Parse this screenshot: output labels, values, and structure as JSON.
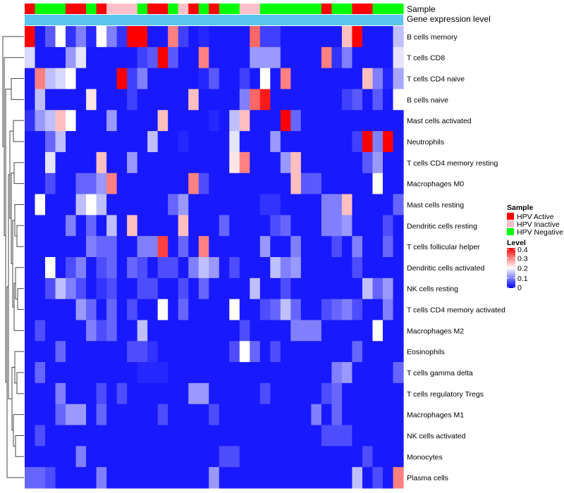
{
  "chart_data": {
    "type": "heatmap",
    "annotations": {
      "sample_label": "Sample",
      "expression_label": "Gene expression level"
    },
    "column_groups": [
      "HPV Active",
      "HPV Negative",
      "HPV Negative",
      "HPV Negative",
      "HPV Active",
      "HPV Active",
      "HPV Negative",
      "HPV Active",
      "HPV Inactive",
      "HPV Inactive",
      "HPV Inactive",
      "HPV Negative",
      "HPV Active",
      "HPV Active",
      "HPV Negative",
      "HPV Inactive",
      "HPV Active",
      "HPV Negative",
      "HPV Active",
      "HPV Negative",
      "HPV Negative",
      "HPV Inactive",
      "HPV Inactive",
      "HPV Negative",
      "HPV Negative",
      "HPV Negative",
      "HPV Negative",
      "HPV Negative",
      "HPV Negative",
      "HPV Active",
      "HPV Negative",
      "HPV Negative",
      "HPV Active",
      "HPV Active",
      "HPV Negative",
      "HPV Negative",
      "HPV Negative"
    ],
    "rows": [
      {
        "name": "B cells memory",
        "values": [
          0.4,
          0.02,
          0.07,
          0.2,
          0.04,
          0.1,
          0.03,
          0.2,
          0.1,
          0.04,
          0.4,
          0.4,
          0.02,
          0.02,
          0.3,
          0.05,
          0.02,
          0.03,
          0.02,
          0.02,
          0.02,
          0.02,
          0.32,
          0.05,
          0.05,
          0.02,
          0.02,
          0.02,
          0.02,
          0.02,
          0.02,
          0.25,
          0.4,
          0.02,
          0.02,
          0.02,
          0.15
        ]
      },
      {
        "name": "T cells CD8",
        "values": [
          0.17,
          0.02,
          0.02,
          0.02,
          0.12,
          0.18,
          0.02,
          0.02,
          0.02,
          0.02,
          0.02,
          0.05,
          0.07,
          0.4,
          0.07,
          0.02,
          0.02,
          0.3,
          0.02,
          0.02,
          0.02,
          0.02,
          0.12,
          0.12,
          0.12,
          0.02,
          0.02,
          0.02,
          0.02,
          0.3,
          0.04,
          0.1,
          0.02,
          0.02,
          0.02,
          0.02,
          0.18
        ]
      },
      {
        "name": "T cells CD4 naive",
        "values": [
          0.02,
          0.3,
          0.15,
          0.17,
          0.2,
          0.02,
          0.02,
          0.02,
          0.02,
          0.4,
          0.05,
          0.1,
          0.02,
          0.02,
          0.02,
          0.02,
          0.02,
          0.03,
          0.07,
          0.02,
          0.02,
          0.05,
          0.02,
          0.2,
          0.02,
          0.3,
          0.02,
          0.02,
          0.02,
          0.02,
          0.02,
          0.02,
          0.02,
          0.25,
          0.1,
          0.03,
          0.13
        ]
      },
      {
        "name": "B cells naive",
        "values": [
          0.02,
          0.15,
          0.02,
          0.02,
          0.02,
          0.02,
          0.22,
          0.02,
          0.02,
          0.02,
          0.05,
          0.02,
          0.02,
          0.02,
          0.02,
          0.02,
          0.25,
          0.02,
          0.02,
          0.02,
          0.02,
          0.1,
          0.32,
          0.38,
          0.02,
          0.02,
          0.02,
          0.02,
          0.02,
          0.02,
          0.02,
          0.05,
          0.07,
          0.02,
          0.07,
          0.02,
          0.2
        ]
      },
      {
        "name": "Mast cells activated",
        "values": [
          0.04,
          0.12,
          0.15,
          0.25,
          0.2,
          0.02,
          0.02,
          0.02,
          0.12,
          0.02,
          0.02,
          0.02,
          0.02,
          0.25,
          0.02,
          0.02,
          0.02,
          0.02,
          0.03,
          0.02,
          0.15,
          0.25,
          0.02,
          0.02,
          0.02,
          0.4,
          0.08,
          0.02,
          0.02,
          0.02,
          0.02,
          0.02,
          0.02,
          0.02,
          0.02,
          0.02,
          0.02
        ]
      },
      {
        "name": "Neutrophils",
        "values": [
          0.02,
          0.02,
          0.08,
          0.15,
          0.02,
          0.02,
          0.02,
          0.02,
          0.02,
          0.02,
          0.02,
          0.02,
          0.15,
          0.02,
          0.02,
          0.03,
          0.02,
          0.02,
          0.02,
          0.02,
          0.18,
          0.02,
          0.02,
          0.02,
          0.12,
          0.02,
          0.02,
          0.02,
          0.02,
          0.02,
          0.02,
          0.02,
          0.05,
          0.4,
          0.1,
          0.4,
          0.02
        ]
      },
      {
        "name": "T cells CD4 memory resting",
        "values": [
          0.02,
          0.02,
          0.18,
          0.02,
          0.02,
          0.02,
          0.02,
          0.25,
          0.02,
          0.02,
          0.12,
          0.02,
          0.02,
          0.02,
          0.02,
          0.02,
          0.02,
          0.02,
          0.02,
          0.02,
          0.22,
          0.3,
          0.02,
          0.02,
          0.02,
          0.12,
          0.25,
          0.02,
          0.02,
          0.02,
          0.02,
          0.02,
          0.02,
          0.07,
          0.12,
          0.02,
          0.02
        ]
      },
      {
        "name": "Macrophages M0",
        "values": [
          0.02,
          0.02,
          0.06,
          0.02,
          0.02,
          0.08,
          0.08,
          0.12,
          0.3,
          0.02,
          0.02,
          0.02,
          0.02,
          0.02,
          0.02,
          0.02,
          0.3,
          0.06,
          0.02,
          0.02,
          0.02,
          0.02,
          0.02,
          0.02,
          0.02,
          0.02,
          0.25,
          0.07,
          0.07,
          0.02,
          0.02,
          0.02,
          0.02,
          0.02,
          0.2,
          0.02,
          0.02
        ]
      },
      {
        "name": "Mast cells resting",
        "values": [
          0.02,
          0.2,
          0.02,
          0.02,
          0.02,
          0.15,
          0.2,
          0.15,
          0.02,
          0.02,
          0.02,
          0.02,
          0.02,
          0.02,
          0.08,
          0.12,
          0.02,
          0.02,
          0.02,
          0.02,
          0.02,
          0.02,
          0.02,
          0.04,
          0.04,
          0.02,
          0.02,
          0.02,
          0.02,
          0.1,
          0.1,
          0.25,
          0.02,
          0.02,
          0.02,
          0.02,
          0.08
        ]
      },
      {
        "name": "Dendritic cells resting",
        "values": [
          0.02,
          0.02,
          0.02,
          0.02,
          0.1,
          0.02,
          0.08,
          0.02,
          0.15,
          0.02,
          0.25,
          0.02,
          0.02,
          0.02,
          0.02,
          0.25,
          0.02,
          0.02,
          0.02,
          0.08,
          0.02,
          0.02,
          0.02,
          0.02,
          0.06,
          0.08,
          0.02,
          0.02,
          0.02,
          0.1,
          0.1,
          0.12,
          0.02,
          0.02,
          0.02,
          0.06,
          0.02
        ]
      },
      {
        "name": "T cells follicular helper",
        "values": [
          0.02,
          0.02,
          0.02,
          0.02,
          0.02,
          0.02,
          0.1,
          0.08,
          0.08,
          0.02,
          0.02,
          0.1,
          0.1,
          0.35,
          0.02,
          0.08,
          0.02,
          0.3,
          0.02,
          0.02,
          0.02,
          0.02,
          0.02,
          0.12,
          0.02,
          0.02,
          0.1,
          0.02,
          0.02,
          0.02,
          0.06,
          0.02,
          0.1,
          0.02,
          0.02,
          0.08,
          0.02
        ]
      },
      {
        "name": "Dendritic cells activated",
        "values": [
          0.02,
          0.02,
          0.2,
          0.02,
          0.06,
          0.1,
          0.02,
          0.06,
          0.08,
          0.02,
          0.08,
          0.06,
          0.02,
          0.06,
          0.06,
          0.02,
          0.1,
          0.15,
          0.12,
          0.02,
          0.06,
          0.02,
          0.02,
          0.02,
          0.15,
          0.1,
          0.12,
          0.02,
          0.02,
          0.02,
          0.02,
          0.02,
          0.06,
          0.02,
          0.02,
          0.02,
          0.02
        ]
      },
      {
        "name": "NK cells resting",
        "values": [
          0.02,
          0.02,
          0.06,
          0.15,
          0.1,
          0.06,
          0.02,
          0.04,
          0.06,
          0.02,
          0.02,
          0.06,
          0.06,
          0.02,
          0.02,
          0.06,
          0.02,
          0.08,
          0.02,
          0.02,
          0.02,
          0.02,
          0.15,
          0.02,
          0.02,
          0.06,
          0.02,
          0.02,
          0.02,
          0.02,
          0.02,
          0.02,
          0.02,
          0.15,
          0.08,
          0.12,
          0.02
        ]
      },
      {
        "name": "T cells CD4 memory activated",
        "values": [
          0.02,
          0.02,
          0.02,
          0.02,
          0.02,
          0.12,
          0.08,
          0.02,
          0.08,
          0.02,
          0.06,
          0.02,
          0.02,
          0.2,
          0.02,
          0.08,
          0.02,
          0.02,
          0.02,
          0.02,
          0.2,
          0.02,
          0.02,
          0.06,
          0.08,
          0.15,
          0.08,
          0.02,
          0.02,
          0.06,
          0.08,
          0.1,
          0.06,
          0.02,
          0.02,
          0.1,
          0.02
        ]
      },
      {
        "name": "Macrophages M2",
        "values": [
          0.02,
          0.06,
          0.02,
          0.02,
          0.02,
          0.02,
          0.1,
          0.06,
          0.08,
          0.02,
          0.02,
          0.15,
          0.02,
          0.02,
          0.02,
          0.02,
          0.02,
          0.02,
          0.02,
          0.02,
          0.02,
          0.06,
          0.02,
          0.02,
          0.02,
          0.02,
          0.1,
          0.1,
          0.1,
          0.02,
          0.02,
          0.02,
          0.02,
          0.02,
          0.2,
          0.02,
          0.02
        ]
      },
      {
        "name": "Eosinophils",
        "values": [
          0.02,
          0.02,
          0.02,
          0.08,
          0.02,
          0.02,
          0.02,
          0.02,
          0.02,
          0.02,
          0.06,
          0.06,
          0.04,
          0.02,
          0.02,
          0.02,
          0.02,
          0.02,
          0.02,
          0.02,
          0.06,
          0.2,
          0.08,
          0.02,
          0.06,
          0.02,
          0.02,
          0.02,
          0.02,
          0.02,
          0.02,
          0.02,
          0.08,
          0.02,
          0.02,
          0.02,
          0.02
        ]
      },
      {
        "name": "T cells gamma delta",
        "values": [
          0.02,
          0.08,
          0.02,
          0.02,
          0.02,
          0.02,
          0.02,
          0.02,
          0.02,
          0.02,
          0.02,
          0.03,
          0.03,
          0.03,
          0.02,
          0.02,
          0.02,
          0.02,
          0.02,
          0.02,
          0.02,
          0.02,
          0.02,
          0.02,
          0.02,
          0.02,
          0.02,
          0.02,
          0.02,
          0.02,
          0.1,
          0.12,
          0.02,
          0.02,
          0.02,
          0.02,
          0.08
        ]
      },
      {
        "name": "T cells regulatory  Tregs",
        "values": [
          0.02,
          0.02,
          0.02,
          0.1,
          0.02,
          0.02,
          0.02,
          0.06,
          0.02,
          0.06,
          0.02,
          0.02,
          0.02,
          0.02,
          0.02,
          0.02,
          0.12,
          0.12,
          0.02,
          0.02,
          0.02,
          0.02,
          0.02,
          0.06,
          0.02,
          0.02,
          0.02,
          0.02,
          0.02,
          0.06,
          0.08,
          0.02,
          0.02,
          0.02,
          0.02,
          0.02,
          0.02
        ]
      },
      {
        "name": "Macrophages M1",
        "values": [
          0.02,
          0.02,
          0.02,
          0.08,
          0.12,
          0.12,
          0.02,
          0.08,
          0.02,
          0.02,
          0.02,
          0.02,
          0.02,
          0.06,
          0.02,
          0.02,
          0.02,
          0.02,
          0.06,
          0.02,
          0.02,
          0.02,
          0.02,
          0.02,
          0.02,
          0.02,
          0.02,
          0.02,
          0.1,
          0.02,
          0.08,
          0.02,
          0.02,
          0.02,
          0.02,
          0.02,
          0.02
        ]
      },
      {
        "name": "NK cells activated",
        "values": [
          0.02,
          0.06,
          0.02,
          0.02,
          0.02,
          0.02,
          0.02,
          0.02,
          0.02,
          0.02,
          0.02,
          0.02,
          0.02,
          0.02,
          0.02,
          0.02,
          0.02,
          0.02,
          0.02,
          0.02,
          0.02,
          0.02,
          0.02,
          0.02,
          0.02,
          0.02,
          0.02,
          0.02,
          0.02,
          0.06,
          0.06,
          0.06,
          0.02,
          0.02,
          0.02,
          0.02,
          0.02
        ]
      },
      {
        "name": "Monocytes",
        "values": [
          0.02,
          0.02,
          0.02,
          0.02,
          0.02,
          0.1,
          0.02,
          0.02,
          0.02,
          0.02,
          0.02,
          0.02,
          0.02,
          0.02,
          0.02,
          0.02,
          0.02,
          0.02,
          0.02,
          0.06,
          0.06,
          0.02,
          0.02,
          0.02,
          0.02,
          0.02,
          0.02,
          0.02,
          0.02,
          0.02,
          0.02,
          0.02,
          0.02,
          0.06,
          0.02,
          0.02,
          0.02
        ]
      },
      {
        "name": "Plasma cells",
        "values": [
          0.08,
          0.08,
          0.06,
          0.02,
          0.02,
          0.02,
          0.02,
          0.1,
          0.02,
          0.02,
          0.02,
          0.02,
          0.02,
          0.02,
          0.02,
          0.02,
          0.02,
          0.02,
          0.12,
          0.02,
          0.02,
          0.02,
          0.02,
          0.02,
          0.02,
          0.02,
          0.02,
          0.02,
          0.02,
          0.02,
          0.02,
          0.02,
          0.15,
          0.02,
          0.06,
          0.02,
          0.3
        ]
      }
    ],
    "legend": {
      "sample": {
        "title": "Sample",
        "entries": [
          {
            "label": "HPV Active",
            "color": "#ff0000"
          },
          {
            "label": "HPV Inactive",
            "color": "#ffc0cb"
          },
          {
            "label": "HPV Negative",
            "color": "#00ff00"
          }
        ]
      },
      "level": {
        "title": "Level",
        "ticks": [
          {
            "value": 0.4,
            "label": "0.4"
          },
          {
            "value": 0.3,
            "label": "0.3"
          },
          {
            "value": 0.2,
            "label": "0.2"
          },
          {
            "value": 0.1,
            "label": "0.1"
          },
          {
            "value": 0,
            "label": "0"
          }
        ]
      }
    },
    "color_scale": {
      "low": "#0000ff",
      "mid": "#ffffff",
      "high": "#ff0000",
      "min": 0,
      "max": 0.4
    },
    "expression_bar_color": "#5bc4f0"
  }
}
